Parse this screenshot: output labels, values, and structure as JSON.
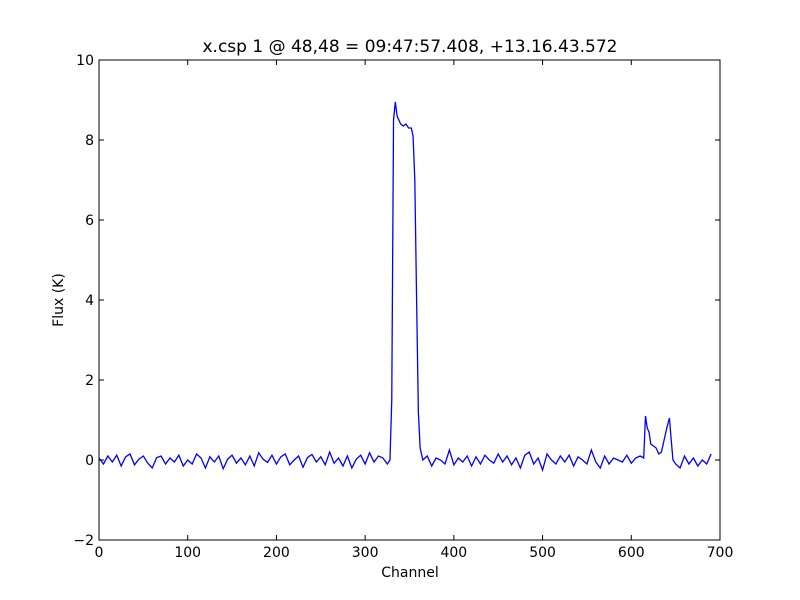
{
  "chart_data": {
    "type": "line",
    "title": "x.csp 1 @ 48,48 = 09:47:57.408, +13.16.43.572",
    "x_label": "Channel",
    "y_label": "Flux (K)",
    "color": "#0000ff",
    "x": [
      0,
      5,
      10,
      15,
      20,
      25,
      30,
      35,
      40,
      45,
      50,
      55,
      60,
      65,
      70,
      75,
      80,
      85,
      90,
      95,
      100,
      105,
      110,
      115,
      120,
      125,
      130,
      135,
      140,
      145,
      150,
      155,
      160,
      165,
      170,
      175,
      180,
      185,
      190,
      195,
      200,
      205,
      210,
      215,
      220,
      225,
      230,
      235,
      240,
      245,
      250,
      255,
      260,
      265,
      270,
      275,
      280,
      285,
      290,
      295,
      300,
      305,
      310,
      315,
      320,
      325,
      328,
      330,
      332,
      334,
      336,
      338,
      340,
      343,
      346,
      349,
      352,
      354,
      356,
      358,
      360,
      362,
      365,
      370,
      375,
      380,
      385,
      390,
      395,
      400,
      405,
      410,
      415,
      420,
      425,
      430,
      435,
      440,
      445,
      450,
      455,
      460,
      465,
      470,
      475,
      480,
      485,
      490,
      495,
      500,
      505,
      510,
      515,
      520,
      525,
      530,
      535,
      540,
      545,
      550,
      555,
      560,
      565,
      570,
      575,
      580,
      585,
      590,
      595,
      600,
      605,
      610,
      614,
      616,
      618,
      620,
      622,
      625,
      628,
      631,
      634,
      637,
      640,
      643,
      645,
      647,
      650,
      655,
      660,
      665,
      670,
      675,
      680,
      685,
      690
    ],
    "values": [
      0.05,
      -0.1,
      0.1,
      -0.05,
      0.12,
      -0.15,
      0.08,
      0.15,
      -0.12,
      0.02,
      0.1,
      -0.08,
      -0.2,
      0.06,
      0.1,
      -0.1,
      0.05,
      -0.05,
      0.12,
      -0.15,
      0.0,
      -0.1,
      0.15,
      0.05,
      -0.2,
      0.08,
      -0.05,
      0.1,
      -0.22,
      0.02,
      0.12,
      -0.08,
      0.05,
      -0.12,
      0.1,
      -0.15,
      0.18,
      0.02,
      -0.06,
      0.12,
      -0.1,
      0.08,
      0.15,
      -0.12,
      0.0,
      0.1,
      -0.18,
      0.06,
      0.14,
      -0.05,
      0.08,
      -0.12,
      0.2,
      -0.08,
      0.05,
      -0.15,
      0.1,
      -0.2,
      0.02,
      0.12,
      -0.1,
      0.18,
      -0.05,
      0.1,
      0.05,
      -0.1,
      0.0,
      1.5,
      8.5,
      8.95,
      8.6,
      8.5,
      8.4,
      8.35,
      8.4,
      8.3,
      8.3,
      8.1,
      7.0,
      4.0,
      1.2,
      0.3,
      0.0,
      0.1,
      -0.15,
      0.05,
      0.0,
      -0.1,
      0.25,
      -0.12,
      0.05,
      -0.05,
      0.1,
      -0.15,
      0.08,
      -0.1,
      0.12,
      0.0,
      -0.08,
      0.15,
      -0.05,
      0.1,
      -0.12,
      0.05,
      -0.2,
      0.12,
      0.2,
      -0.1,
      0.05,
      -0.25,
      0.15,
      0.0,
      -0.1,
      0.1,
      -0.05,
      0.12,
      -0.15,
      0.08,
      0.0,
      -0.1,
      0.25,
      -0.05,
      -0.2,
      0.1,
      -0.1,
      0.05,
      0.0,
      -0.05,
      0.12,
      -0.08,
      0.05,
      0.1,
      0.05,
      1.1,
      0.8,
      0.7,
      0.4,
      0.35,
      0.3,
      0.15,
      0.2,
      0.5,
      0.8,
      1.05,
      0.5,
      0.0,
      -0.1,
      -0.2,
      0.1,
      -0.1,
      0.05,
      -0.15,
      0.0,
      -0.1,
      0.15
    ],
    "xlim": [
      0,
      700
    ],
    "xticks": [
      0,
      100,
      200,
      300,
      400,
      500,
      600,
      700
    ],
    "ylim": [
      -2,
      10
    ],
    "yticks": [
      {
        "value": -2,
        "label": "−2"
      },
      0,
      2,
      4,
      6,
      8,
      10
    ]
  }
}
